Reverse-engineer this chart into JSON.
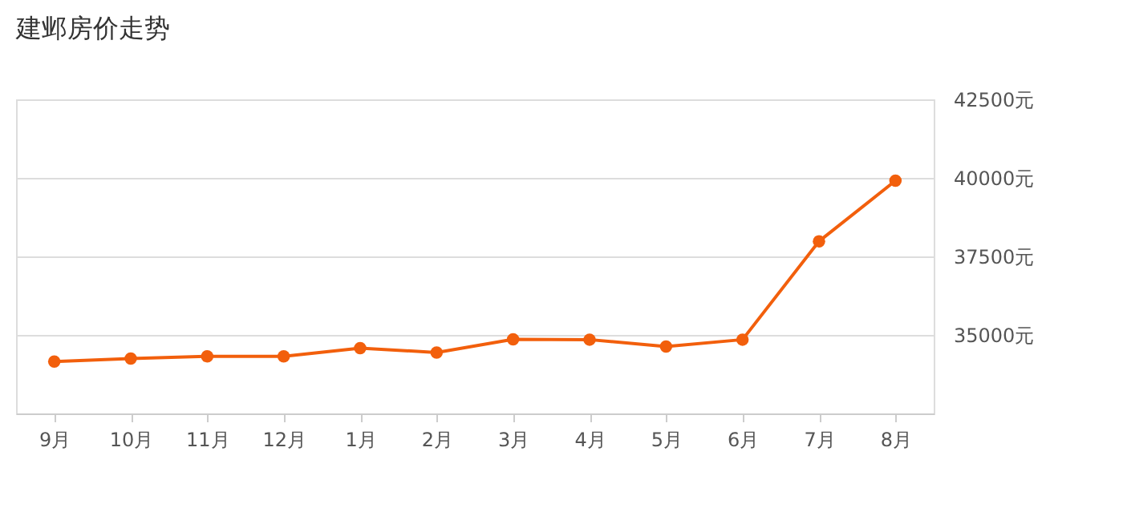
{
  "chart_data": {
    "type": "line",
    "title": "建邺房价走势",
    "categories": [
      "9月",
      "10月",
      "11月",
      "12月",
      "1月",
      "2月",
      "3月",
      "4月",
      "5月",
      "6月",
      "7月",
      "8月"
    ],
    "series": [
      {
        "color": "#f25f0c",
        "values": [
          34150,
          34250,
          34320,
          34320,
          34580,
          34440,
          34860,
          34850,
          34630,
          34850,
          37980,
          39910
        ]
      }
    ],
    "ylim": [
      32500,
      42500
    ],
    "yticks": [
      {
        "value": 35000,
        "label": "35000元"
      },
      {
        "value": 37500,
        "label": "37500元"
      },
      {
        "value": 40000,
        "label": "40000元"
      },
      {
        "value": 42500,
        "label": "42500元"
      }
    ],
    "grid": "y",
    "marker": "circle",
    "line_style": "solid",
    "legend": false
  }
}
